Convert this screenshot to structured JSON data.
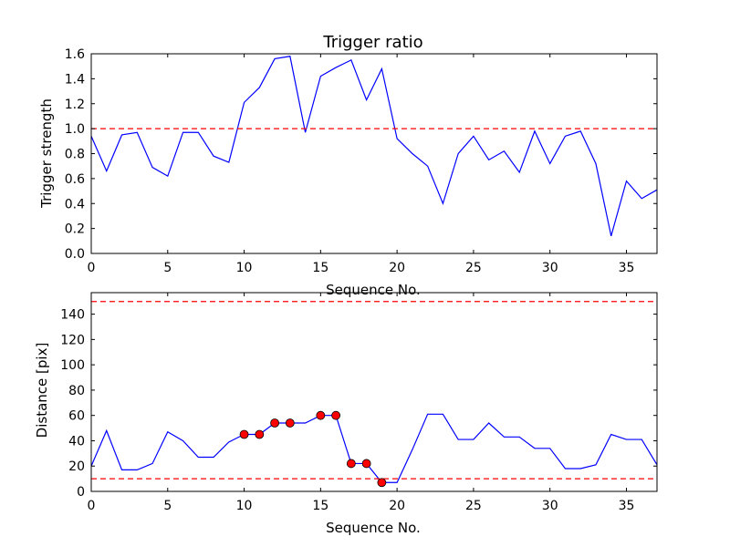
{
  "colors": {
    "series": "#0000ff",
    "threshold": "#ff0000",
    "marker_fill": "#ff0000",
    "marker_edge": "#000000",
    "frame": "#000000",
    "background": "#ffffff"
  },
  "chart_data": [
    {
      "type": "line",
      "title": "Trigger ratio",
      "xlabel": "Sequence No.",
      "ylabel": "Trigger strength",
      "xlim": [
        0,
        37
      ],
      "ylim": [
        0,
        1.6
      ],
      "xticks": [
        0,
        5,
        10,
        15,
        20,
        25,
        30,
        35
      ],
      "xtick_labels": [
        "0",
        "5",
        "10",
        "15",
        "20",
        "25",
        "30",
        "35"
      ],
      "yticks": [
        0,
        0.2,
        0.4,
        0.6,
        0.8,
        1.0,
        1.2,
        1.4,
        1.6
      ],
      "ytick_labels": [
        "0.0",
        "0.2",
        "0.4",
        "0.6",
        "0.8",
        "1.0",
        "1.2",
        "1.4",
        "1.6"
      ],
      "grid": false,
      "x": [
        0,
        1,
        2,
        3,
        4,
        5,
        6,
        7,
        8,
        9,
        10,
        11,
        12,
        13,
        14,
        15,
        16,
        17,
        18,
        19,
        20,
        21,
        22,
        23,
        24,
        25,
        26,
        27,
        28,
        29,
        30,
        31,
        32,
        33,
        34,
        35,
        36,
        37
      ],
      "series": [
        {
          "values": [
            0.94,
            0.66,
            0.95,
            0.97,
            0.69,
            0.62,
            0.97,
            0.97,
            0.78,
            0.73,
            1.21,
            1.33,
            1.56,
            1.58,
            0.97,
            1.42,
            1.49,
            1.55,
            1.23,
            1.48,
            0.92,
            0.8,
            0.7,
            0.4,
            0.8,
            0.94,
            0.75,
            0.82,
            0.65,
            0.98,
            0.72,
            0.94,
            0.98,
            0.72,
            0.14,
            0.58,
            0.44,
            0.51
          ]
        }
      ],
      "hlines": [
        1.0
      ]
    },
    {
      "type": "line",
      "title": "",
      "xlabel": "Sequence No.",
      "ylabel": "Distance [pix]",
      "xlim": [
        0,
        37
      ],
      "ylim": [
        0,
        157
      ],
      "xticks": [
        0,
        5,
        10,
        15,
        20,
        25,
        30,
        35
      ],
      "xtick_labels": [
        "0",
        "5",
        "10",
        "15",
        "20",
        "25",
        "30",
        "35"
      ],
      "yticks": [
        0,
        20,
        40,
        60,
        80,
        100,
        120,
        140
      ],
      "ytick_labels": [
        "0",
        "20",
        "40",
        "60",
        "80",
        "100",
        "120",
        "140"
      ],
      "grid": false,
      "x": [
        0,
        1,
        2,
        3,
        4,
        5,
        6,
        7,
        8,
        9,
        10,
        11,
        12,
        13,
        14,
        15,
        16,
        17,
        18,
        19,
        20,
        21,
        22,
        23,
        24,
        25,
        26,
        27,
        28,
        29,
        30,
        31,
        32,
        33,
        34,
        35,
        36,
        37
      ],
      "series": [
        {
          "values": [
            20,
            48,
            17,
            17,
            22,
            47,
            40,
            27,
            27,
            39,
            45,
            45,
            54,
            54,
            54,
            60,
            60,
            22,
            22,
            7,
            7,
            33,
            61,
            61,
            41,
            41,
            54,
            43,
            43,
            34,
            34,
            18,
            18,
            21,
            45,
            41,
            41,
            21
          ]
        }
      ],
      "markers": {
        "x": [
          10,
          11,
          12,
          13,
          15,
          16,
          17,
          18,
          19
        ],
        "y": [
          45,
          45,
          54,
          54,
          60,
          60,
          22,
          22,
          7
        ]
      },
      "hlines": [
        150,
        10
      ]
    }
  ]
}
